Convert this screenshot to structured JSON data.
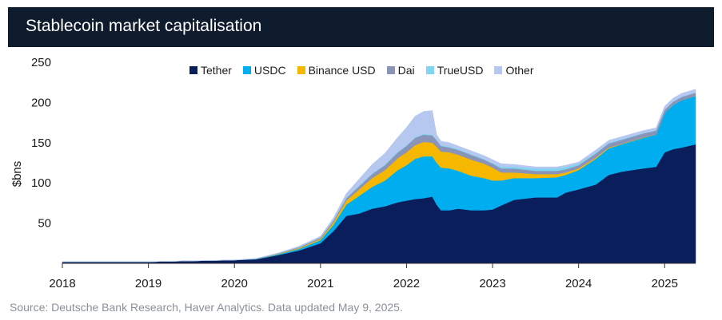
{
  "header": {
    "title": "Stablecoin market capitalisation"
  },
  "source": "Source: Deutsche Bank Research, Haver Analytics. Data updated May 9, 2025.",
  "chart_data": {
    "type": "area",
    "stacked": true,
    "title": "Stablecoin market capitalisation",
    "ylabel": "$bns",
    "xlabel": "",
    "ylim": [
      0,
      250
    ],
    "xlim": [
      2018,
      2025.36
    ],
    "yticks": [
      50,
      100,
      150,
      200,
      250
    ],
    "xticks": [
      2018,
      2019,
      2020,
      2021,
      2022,
      2023,
      2024,
      2025
    ],
    "grid": false,
    "legend_position": "top",
    "x": [
      2018.0,
      2018.5,
      2019.0,
      2019.5,
      2020.0,
      2020.25,
      2020.5,
      2020.75,
      2021.0,
      2021.15,
      2021.3,
      2021.45,
      2021.6,
      2021.75,
      2021.9,
      2022.0,
      2022.1,
      2022.2,
      2022.3,
      2022.35,
      2022.4,
      2022.5,
      2022.6,
      2022.75,
      2022.9,
      2023.0,
      2023.1,
      2023.25,
      2023.5,
      2023.75,
      2023.85,
      2024.0,
      2024.2,
      2024.35,
      2024.5,
      2024.75,
      2024.9,
      2025.0,
      2025.1,
      2025.2,
      2025.36
    ],
    "series": [
      {
        "name": "Tether",
        "color": "#0a1e5c",
        "values": [
          2,
          2,
          2,
          3,
          4,
          5,
          10,
          16,
          25,
          40,
          59,
          62,
          68,
          71,
          76,
          78,
          80,
          81,
          83,
          73,
          66,
          66,
          68,
          66,
          66,
          67,
          72,
          79,
          82,
          82,
          88,
          92,
          98,
          110,
          114,
          118,
          120,
          138,
          142,
          144,
          148
        ]
      },
      {
        "name": "USDC",
        "color": "#00aeef",
        "values": [
          0,
          0,
          0,
          0,
          0,
          0.5,
          1,
          2,
          4,
          8,
          14,
          22,
          27,
          32,
          40,
          44,
          50,
          52,
          50,
          52,
          53,
          52,
          47,
          43,
          40,
          36,
          31,
          27,
          24,
          25,
          22,
          24,
          32,
          33,
          34,
          38,
          40,
          49,
          55,
          59,
          60
        ]
      },
      {
        "name": "Binance USD",
        "color": "#f5b700",
        "values": [
          0,
          0,
          0,
          0,
          0,
          0,
          0.5,
          1,
          1.5,
          3,
          5,
          8,
          11,
          13,
          15,
          16,
          17,
          18,
          17,
          20,
          20,
          20,
          20,
          20,
          18,
          16,
          10,
          7,
          5,
          4,
          3,
          2,
          1.5,
          1,
          0.5,
          0.5,
          0,
          0,
          0,
          0,
          0
        ]
      },
      {
        "name": "Dai",
        "color": "#8a94b8",
        "values": [
          0,
          0,
          0,
          0,
          0.1,
          0.2,
          0.5,
          1,
          1.5,
          2,
          3,
          4,
          5,
          6,
          7,
          8,
          9,
          9,
          9,
          8,
          7,
          6,
          6,
          6,
          5,
          5,
          5,
          5,
          4,
          4,
          4,
          4,
          5,
          5,
          5,
          5,
          5,
          4,
          4,
          4,
          4
        ]
      },
      {
        "name": "TrueUSD",
        "color": "#7fd4f0",
        "values": [
          0,
          0,
          0,
          0,
          0,
          0.1,
          0.2,
          0.3,
          0.3,
          0.5,
          0.8,
          1,
          1,
          1,
          1,
          1,
          1,
          1,
          1,
          1,
          1,
          1,
          1,
          1,
          1,
          1,
          2,
          2,
          3,
          3,
          3,
          2,
          1.5,
          1,
          1,
          0.5,
          0.5,
          0.5,
          0.5,
          0.5,
          0.5
        ]
      },
      {
        "name": "Other",
        "color": "#b7c8f0",
        "values": [
          0,
          0,
          0,
          0,
          0.2,
          0.3,
          0.5,
          1,
          1.5,
          3,
          5,
          8,
          11,
          14,
          18,
          22,
          26,
          28,
          30,
          6,
          5,
          5,
          4,
          4,
          4,
          4,
          4,
          3,
          2,
          2,
          2,
          2,
          3,
          3,
          3,
          3,
          3,
          4,
          4,
          4,
          4
        ]
      }
    ]
  }
}
